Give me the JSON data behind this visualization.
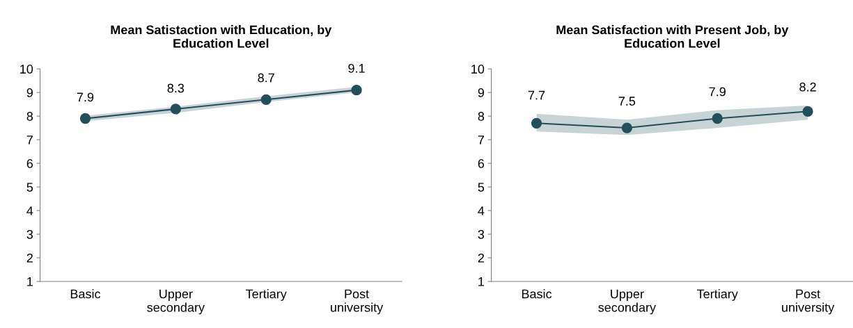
{
  "chart_data": [
    {
      "type": "line",
      "title": "Mean Satistaction with Education, by Education Level",
      "categories": [
        "Basic",
        "Upper secondary",
        "Tertiary",
        "Post university"
      ],
      "series": [
        {
          "color": "#234f5a",
          "values": [
            7.9,
            8.3,
            8.7,
            9.1
          ],
          "lower": [
            7.78,
            8.14,
            8.6,
            9.0
          ],
          "upper": [
            8.02,
            8.4,
            8.84,
            9.24
          ]
        }
      ],
      "ylim": [
        1,
        10
      ],
      "yticks": [
        1,
        2,
        3,
        4,
        5,
        6,
        7,
        8,
        9,
        10
      ],
      "grid": false,
      "marker": "circle",
      "line_style": "solid",
      "data_labels": true
    },
    {
      "type": "line",
      "title": "Mean Satisfaction with Present Job, by Education Level",
      "categories": [
        "Basic",
        "Upper secondary",
        "Tertiary",
        "Post university"
      ],
      "series": [
        {
          "color": "#234f5a",
          "values": [
            7.7,
            7.5,
            7.9,
            8.2
          ],
          "lower": [
            7.35,
            7.2,
            7.5,
            7.85
          ],
          "upper": [
            8.1,
            7.85,
            8.25,
            8.45
          ]
        }
      ],
      "ylim": [
        1,
        10
      ],
      "yticks": [
        1,
        2,
        3,
        4,
        5,
        6,
        7,
        8,
        9,
        10
      ],
      "grid": false,
      "marker": "circle",
      "line_style": "solid",
      "data_labels": true
    }
  ]
}
